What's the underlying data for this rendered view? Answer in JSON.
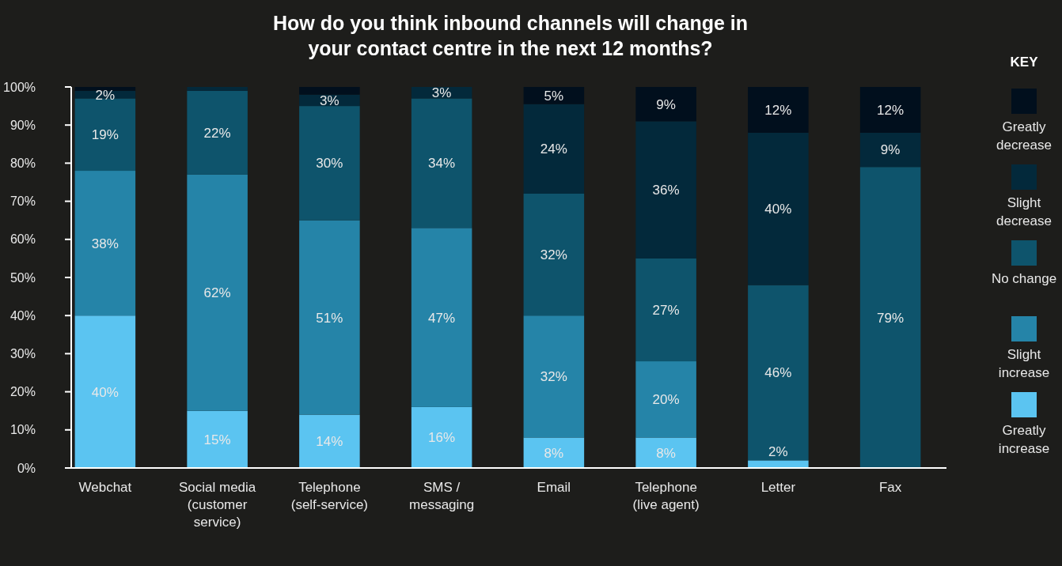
{
  "chart_data": {
    "type": "bar",
    "stacked": true,
    "title": "How do you think inbound channels will change in your contact centre in the next 12 months?",
    "categories": [
      "Webchat",
      "Social media (customer service)",
      "Telephone (self-service)",
      "SMS / messaging",
      "Email",
      "Telephone (live agent)",
      "Letter",
      "Fax"
    ],
    "series": [
      {
        "name": "Greatly increase",
        "color": "#5bc4f1",
        "values": [
          40,
          15,
          14,
          16,
          8,
          8,
          2,
          0
        ],
        "value_labels": [
          "40%",
          "15%",
          "14%",
          "16%",
          "8%",
          "8%",
          "2%",
          null
        ]
      },
      {
        "name": "Slight increase",
        "color": "#2584a8",
        "values": [
          38,
          62,
          51,
          47,
          32,
          20,
          0,
          0
        ],
        "value_labels": [
          "38%",
          "62%",
          "51%",
          "47%",
          "32%",
          "20%",
          null,
          null
        ]
      },
      {
        "name": "No change",
        "color": "#0e546c",
        "values": [
          19,
          22,
          30,
          34,
          32,
          27,
          46,
          79
        ],
        "value_labels": [
          "19%",
          "22%",
          "30%",
          "34%",
          "32%",
          "27%",
          "46%",
          "79%"
        ]
      },
      {
        "name": "Slight decrease",
        "color": "#03293b",
        "values": [
          2,
          1,
          3,
          3,
          23.5,
          36,
          40,
          9
        ],
        "value_labels": [
          "2%",
          null,
          "3%",
          "3%",
          "24%",
          "36%",
          "40%",
          "9%"
        ]
      },
      {
        "name": "Greatly decrease",
        "color": "#010f1d",
        "values": [
          1,
          0,
          2,
          0,
          4.5,
          9,
          12,
          12
        ],
        "value_labels": [
          null,
          null,
          null,
          null,
          "5%",
          "9%",
          "12%",
          "12%"
        ]
      }
    ],
    "ylim": [
      0,
      100
    ],
    "yticks": [
      {
        "value": 0,
        "label": "0%"
      },
      {
        "value": 10,
        "label": "10%"
      },
      {
        "value": 20,
        "label": "20%"
      },
      {
        "value": 30,
        "label": "30%"
      },
      {
        "value": 40,
        "label": "40%"
      },
      {
        "value": 50,
        "label": "50%"
      },
      {
        "value": 60,
        "label": "60%"
      },
      {
        "value": 70,
        "label": "70%"
      },
      {
        "value": 80,
        "label": "80%"
      },
      {
        "value": 90,
        "label": "90%"
      },
      {
        "value": 100,
        "label": "100%"
      }
    ],
    "grid": false,
    "legend": "right",
    "legend_title": "KEY"
  }
}
